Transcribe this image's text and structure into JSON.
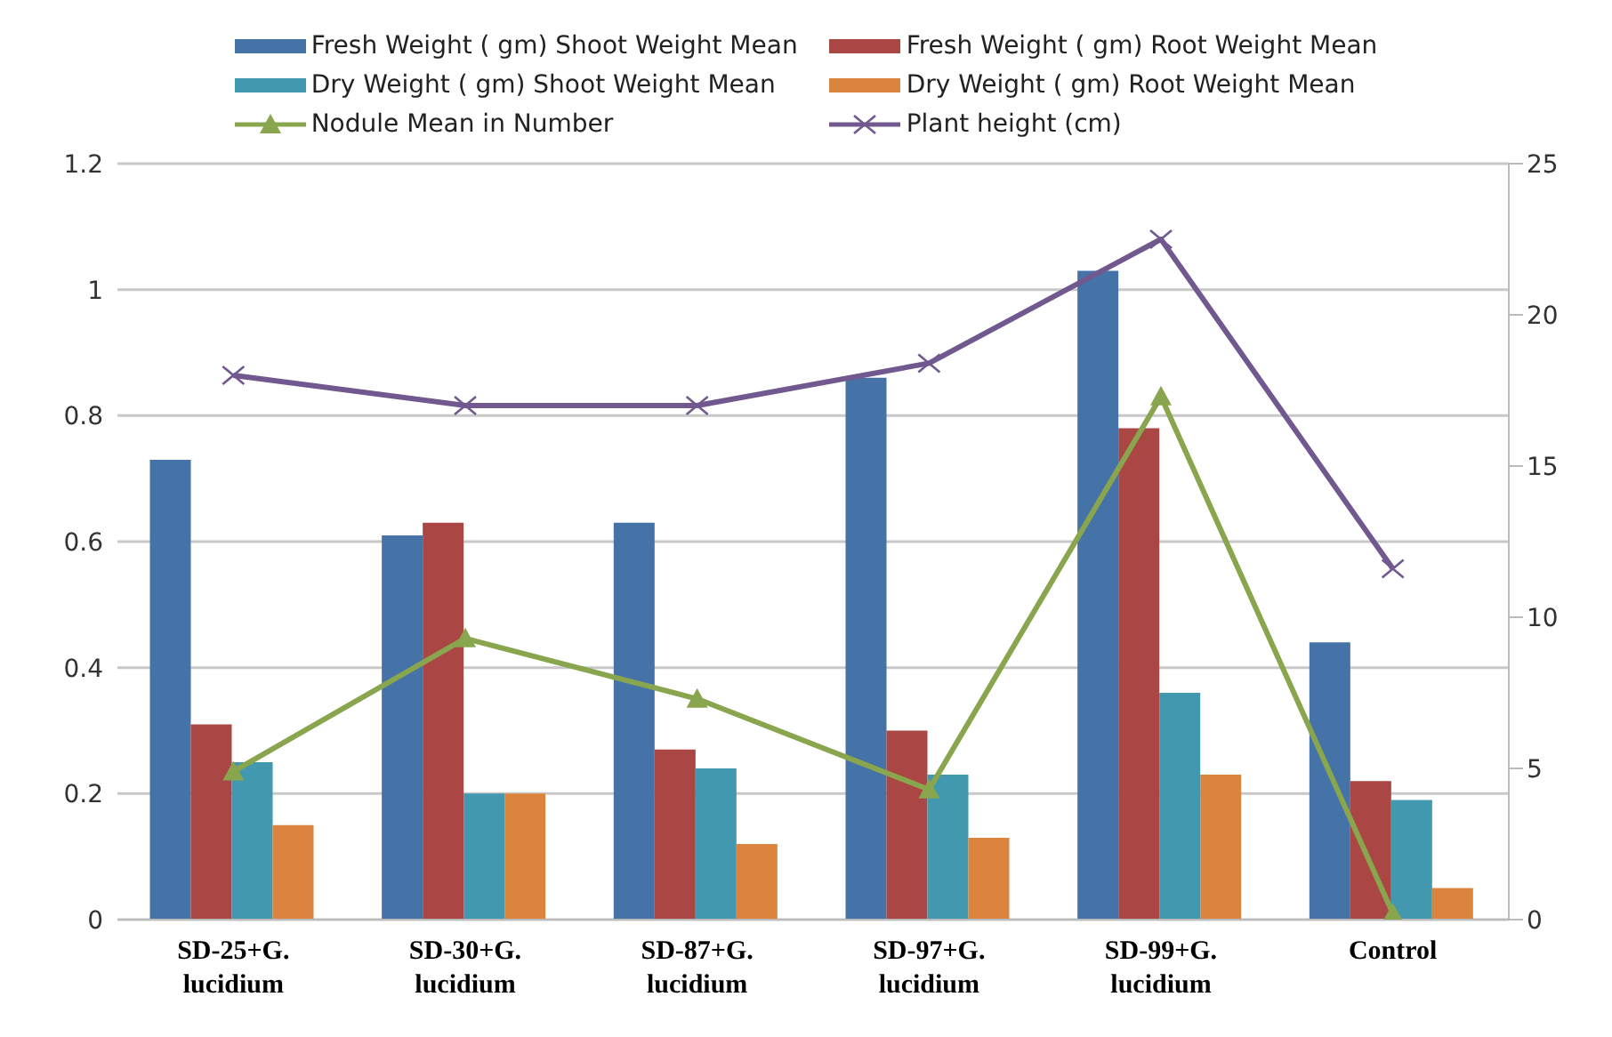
{
  "chart_data": {
    "type": "bar",
    "categories": [
      "SD-25+G. lucidium",
      "SD-30+G. lucidium",
      "SD-87+G. lucidium",
      "SD-97+G. lucidium",
      "SD-99+G. lucidium",
      "Control"
    ],
    "series": [
      {
        "name": "Fresh Weight ( gm) Shoot Weight Mean",
        "color": "#4572a7",
        "values": [
          0.73,
          0.61,
          0.63,
          0.86,
          1.03,
          0.44
        ]
      },
      {
        "name": "Fresh Weight ( gm) Root Weight Mean",
        "color": "#aa4643",
        "values": [
          0.31,
          0.63,
          0.27,
          0.3,
          0.78,
          0.22
        ]
      },
      {
        "name": "Dry Weight ( gm) Shoot Weight Mean",
        "color": "#4198af",
        "values": [
          0.25,
          0.2,
          0.24,
          0.23,
          0.36,
          0.19
        ]
      },
      {
        "name": "Dry Weight ( gm) Root Weight Mean",
        "color": "#db843d",
        "values": [
          0.15,
          0.2,
          0.12,
          0.13,
          0.23,
          0.05
        ]
      },
      {
        "name": "Nodule Mean in  Number",
        "type": "line",
        "axis": "y2",
        "marker": "triangle",
        "color": "#89a54e",
        "values": [
          4.9,
          9.3,
          7.3,
          4.3,
          17.3,
          0.2
        ]
      },
      {
        "name": "Plant height (cm)",
        "type": "line",
        "axis": "y2",
        "marker": "cross",
        "color": "#71588f",
        "values": [
          18,
          17,
          17,
          18.4,
          22.5,
          11.6
        ]
      }
    ],
    "ylim": [
      0,
      1.2
    ],
    "yticks": [
      0,
      {
        "value": 0.2,
        "label": "0.2"
      },
      {
        "value": 0.4,
        "label": "0.4"
      },
      {
        "value": 0.6,
        "label": "0.6"
      },
      {
        "value": 0.8,
        "label": "0.8"
      },
      1,
      {
        "value": 1.2,
        "label": "1.2"
      }
    ],
    "y2lim": [
      0,
      25
    ],
    "y2ticks": [
      0,
      5,
      10,
      15,
      20,
      25
    ],
    "grid": "y",
    "legend": "top",
    "line_style": "solid"
  }
}
